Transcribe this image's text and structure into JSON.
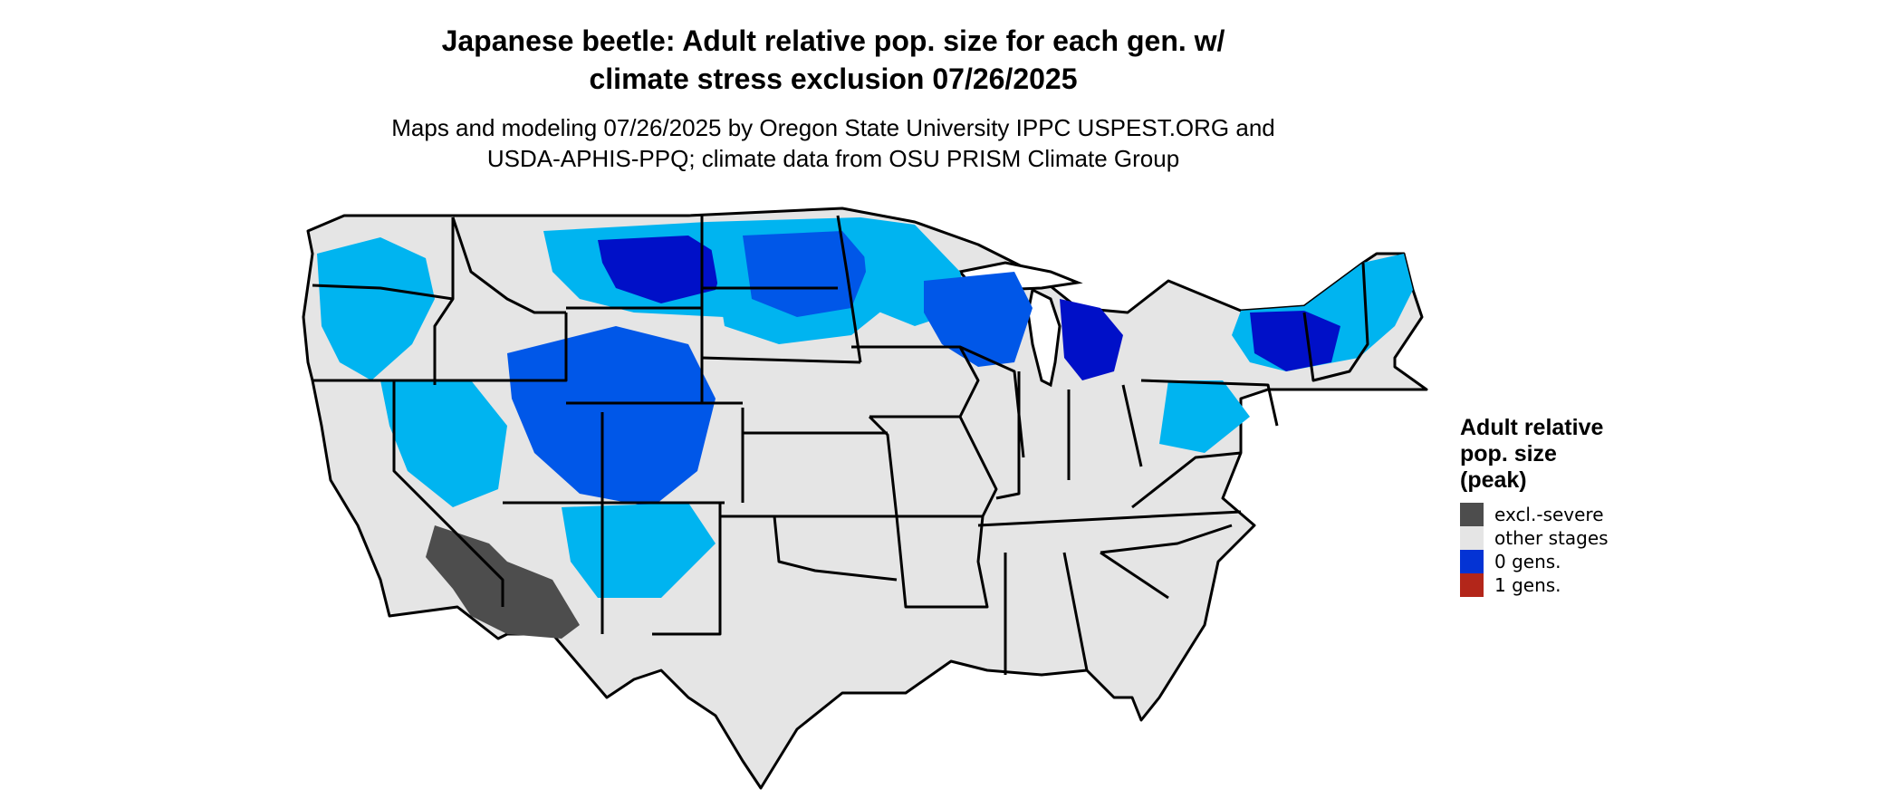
{
  "title_line1": "Japanese beetle: Adult relative pop. size for each gen. w/",
  "title_line2": "climate stress exclusion 07/26/2025",
  "subtitle_line1": "Maps and modeling 07/26/2025 by Oregon State University IPPC USPEST.ORG and",
  "subtitle_line2": "USDA-APHIS-PPQ; climate data from OSU PRISM Climate Group",
  "legend": {
    "title_line1": "Adult relative",
    "title_line2": "pop. size",
    "title_line3": "(peak)",
    "items": [
      {
        "label": "excl.-severe",
        "color": "#4d4d4d"
      },
      {
        "label": "other stages",
        "color": "#e5e5e5"
      },
      {
        "label": "0 gens.",
        "color": "#0433d4"
      },
      {
        "label": "1 gens.",
        "color": "#b3261a"
      }
    ]
  },
  "colors": {
    "land": "#e5e5e5",
    "border": "#000000",
    "deep_blue": "#0010c8",
    "mid_blue": "#0057e8",
    "light_blue": "#00b4f0",
    "excluded": "#4d4d4d"
  }
}
